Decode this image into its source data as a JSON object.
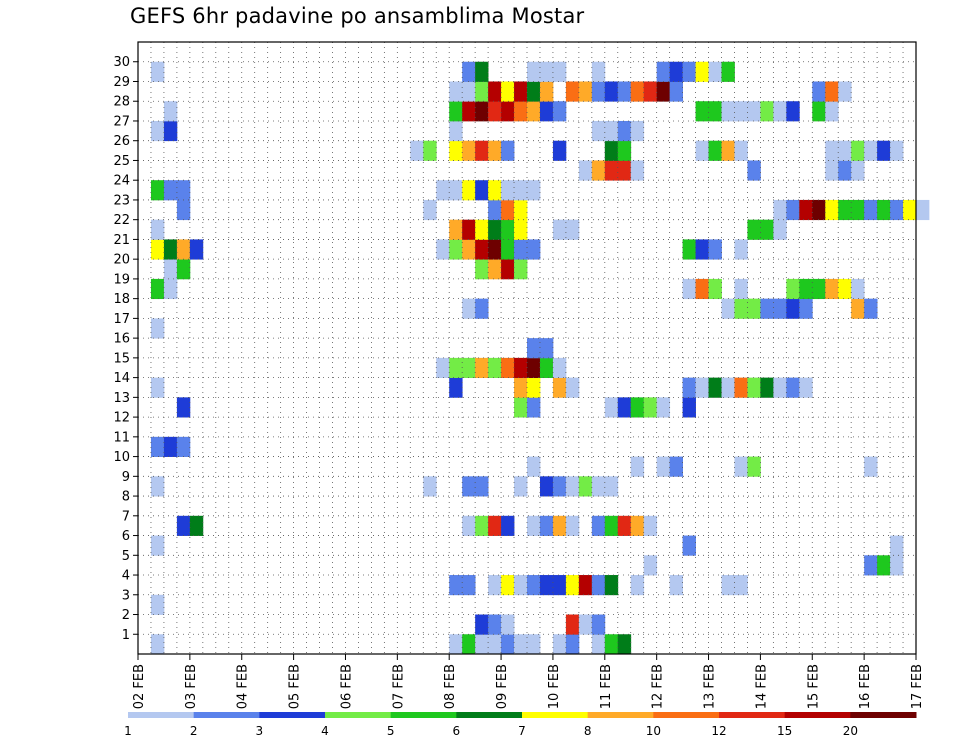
{
  "chart_data": {
    "type": "heatmap",
    "title": "GEFS 6hr padavine po ansamblima Mostar",
    "xlabel": "",
    "ylabel": "",
    "x_ticks": [
      "02 FEB",
      "03 FEB",
      "04 FEB",
      "05 FEB",
      "06 FEB",
      "07 FEB",
      "08 FEB",
      "09 FEB",
      "10 FEB",
      "11 FEB",
      "12 FEB",
      "13 FEB",
      "14 FEB",
      "15 FEB",
      "16 FEB",
      "17 FEB"
    ],
    "y_ticks": [
      "1",
      "2",
      "3",
      "4",
      "5",
      "6",
      "7",
      "8",
      "9",
      "10",
      "11",
      "12",
      "13",
      "14",
      "15",
      "16",
      "17",
      "18",
      "19",
      "20",
      "21",
      "22",
      "23",
      "24",
      "25",
      "26",
      "27",
      "28",
      "29",
      "30"
    ],
    "xlim_days": [
      0,
      15
    ],
    "steps_per_day": 4,
    "ylim": [
      0,
      30
    ],
    "grid": true,
    "legend_placement": "bottom",
    "legend": {
      "labels": [
        "1",
        "2",
        "3",
        "4",
        "5",
        "6",
        "7",
        "8",
        "10",
        "12",
        "15",
        "20"
      ],
      "colors": [
        "#b4c8f0",
        "#5a82eb",
        "#1e3cd7",
        "#73ec46",
        "#1ec81e",
        "#007d19",
        "#ffff00",
        "#ffaa28",
        "#fa6e14",
        "#e12814",
        "#b40000",
        "#6e0000"
      ]
    },
    "colors_by_level": [
      "#b4c8f0",
      "#5a82eb",
      "#1e3cd7",
      "#73ec46",
      "#1ec81e",
      "#007d19",
      "#ffff00",
      "#ffaa28",
      "#fa6e14",
      "#e12814",
      "#b40000",
      "#6e0000"
    ],
    "rows": [
      {
        "member": 0,
        "cells": [
          [
            1,
            1
          ],
          [
            24,
            1
          ],
          [
            25,
            5
          ],
          [
            26,
            1
          ],
          [
            27,
            1
          ],
          [
            28,
            2
          ],
          [
            29,
            1
          ],
          [
            30,
            1
          ],
          [
            32,
            1
          ],
          [
            33,
            2
          ],
          [
            35,
            1
          ],
          [
            36,
            5
          ],
          [
            37,
            6
          ]
        ]
      },
      {
        "member": 1,
        "cells": [
          [
            26,
            3
          ],
          [
            27,
            2
          ],
          [
            28,
            1
          ],
          [
            33,
            10
          ],
          [
            34,
            1
          ],
          [
            35,
            2
          ]
        ]
      },
      {
        "member": 2,
        "cells": [
          [
            1,
            1
          ]
        ]
      },
      {
        "member": 3,
        "cells": [
          [
            24,
            2
          ],
          [
            25,
            2
          ],
          [
            27,
            1
          ],
          [
            28,
            7
          ],
          [
            29,
            1
          ],
          [
            30,
            2
          ],
          [
            31,
            3
          ],
          [
            32,
            3
          ],
          [
            33,
            7
          ],
          [
            34,
            11
          ],
          [
            35,
            2
          ],
          [
            36,
            6
          ],
          [
            38,
            1
          ],
          [
            41,
            1
          ],
          [
            45,
            1
          ],
          [
            46,
            1
          ]
        ]
      },
      {
        "member": 4,
        "cells": [
          [
            39,
            1
          ],
          [
            56,
            2
          ],
          [
            57,
            5
          ],
          [
            58,
            1
          ]
        ]
      },
      {
        "member": 5,
        "cells": [
          [
            1,
            1
          ],
          [
            42,
            2
          ],
          [
            58,
            1
          ]
        ]
      },
      {
        "member": 6,
        "cells": [
          [
            3,
            3
          ],
          [
            4,
            6
          ],
          [
            25,
            1
          ],
          [
            26,
            4
          ],
          [
            27,
            10
          ],
          [
            28,
            3
          ],
          [
            30,
            1
          ],
          [
            31,
            2
          ],
          [
            32,
            8
          ],
          [
            33,
            1
          ],
          [
            35,
            2
          ],
          [
            36,
            5
          ],
          [
            37,
            10
          ],
          [
            38,
            8
          ],
          [
            39,
            1
          ]
        ]
      },
      {
        "member": 7,
        "cells": []
      },
      {
        "member": 8,
        "cells": [
          [
            1,
            1
          ],
          [
            22,
            1
          ],
          [
            25,
            2
          ],
          [
            26,
            2
          ],
          [
            29,
            1
          ],
          [
            31,
            3
          ],
          [
            32,
            2
          ],
          [
            33,
            1
          ],
          [
            34,
            4
          ],
          [
            35,
            1
          ],
          [
            36,
            1
          ]
        ]
      },
      {
        "member": 9,
        "cells": [
          [
            30,
            1
          ],
          [
            38,
            1
          ],
          [
            40,
            1
          ],
          [
            41,
            2
          ],
          [
            46,
            1
          ],
          [
            47,
            4
          ],
          [
            56,
            1
          ]
        ]
      },
      {
        "member": 10,
        "cells": [
          [
            1,
            2
          ],
          [
            2,
            3
          ],
          [
            3,
            2
          ]
        ]
      },
      {
        "member": 11,
        "cells": []
      },
      {
        "member": 12,
        "cells": [
          [
            3,
            3
          ],
          [
            29,
            4
          ],
          [
            30,
            2
          ],
          [
            36,
            1
          ],
          [
            37,
            3
          ],
          [
            38,
            5
          ],
          [
            39,
            4
          ],
          [
            40,
            1
          ],
          [
            42,
            3
          ]
        ]
      },
      {
        "member": 13,
        "cells": [
          [
            1,
            1
          ],
          [
            24,
            3
          ],
          [
            29,
            8
          ],
          [
            30,
            7
          ],
          [
            32,
            8
          ],
          [
            33,
            1
          ],
          [
            42,
            2
          ],
          [
            43,
            1
          ],
          [
            44,
            6
          ],
          [
            45,
            1
          ],
          [
            46,
            9
          ],
          [
            47,
            4
          ],
          [
            48,
            6
          ],
          [
            49,
            1
          ],
          [
            50,
            2
          ],
          [
            51,
            1
          ]
        ]
      },
      {
        "member": 14,
        "cells": [
          [
            23,
            1
          ],
          [
            24,
            4
          ],
          [
            25,
            4
          ],
          [
            26,
            8
          ],
          [
            27,
            4
          ],
          [
            28,
            9
          ],
          [
            29,
            11
          ],
          [
            30,
            12
          ],
          [
            31,
            5
          ],
          [
            32,
            1
          ]
        ]
      },
      {
        "member": 15,
        "cells": [
          [
            30,
            2
          ],
          [
            31,
            2
          ]
        ]
      },
      {
        "member": 16,
        "cells": [
          [
            1,
            1
          ]
        ]
      },
      {
        "member": 17,
        "cells": [
          [
            25,
            1
          ],
          [
            26,
            2
          ],
          [
            45,
            1
          ],
          [
            46,
            4
          ],
          [
            47,
            4
          ],
          [
            48,
            2
          ],
          [
            49,
            2
          ],
          [
            50,
            3
          ],
          [
            51,
            2
          ],
          [
            55,
            8
          ],
          [
            56,
            2
          ]
        ]
      },
      {
        "member": 18,
        "cells": [
          [
            1,
            5
          ],
          [
            2,
            1
          ],
          [
            42,
            1
          ],
          [
            43,
            9
          ],
          [
            44,
            4
          ],
          [
            46,
            1
          ],
          [
            50,
            4
          ],
          [
            51,
            5
          ],
          [
            52,
            5
          ],
          [
            53,
            8
          ],
          [
            54,
            7
          ],
          [
            55,
            1
          ]
        ]
      },
      {
        "member": 19,
        "cells": [
          [
            2,
            1
          ],
          [
            3,
            5
          ],
          [
            26,
            4
          ],
          [
            27,
            8
          ],
          [
            28,
            11
          ],
          [
            29,
            4
          ]
        ]
      },
      {
        "member": 20,
        "cells": [
          [
            1,
            7
          ],
          [
            2,
            6
          ],
          [
            3,
            8
          ],
          [
            4,
            3
          ],
          [
            23,
            1
          ],
          [
            24,
            4
          ],
          [
            25,
            8
          ],
          [
            26,
            11
          ],
          [
            27,
            12
          ],
          [
            28,
            5
          ],
          [
            29,
            2
          ],
          [
            30,
            2
          ],
          [
            42,
            5
          ],
          [
            43,
            3
          ],
          [
            44,
            2
          ],
          [
            46,
            1
          ]
        ]
      },
      {
        "member": 21,
        "cells": [
          [
            1,
            1
          ],
          [
            24,
            8
          ],
          [
            25,
            11
          ],
          [
            26,
            7
          ],
          [
            27,
            6
          ],
          [
            28,
            5
          ],
          [
            29,
            7
          ],
          [
            32,
            1
          ],
          [
            33,
            1
          ],
          [
            47,
            5
          ],
          [
            48,
            5
          ],
          [
            49,
            1
          ]
        ]
      },
      {
        "member": 22,
        "cells": [
          [
            3,
            2
          ],
          [
            22,
            1
          ],
          [
            27,
            2
          ],
          [
            28,
            9
          ],
          [
            29,
            7
          ],
          [
            49,
            1
          ],
          [
            50,
            2
          ],
          [
            51,
            11
          ],
          [
            52,
            12
          ],
          [
            53,
            7
          ],
          [
            54,
            5
          ],
          [
            55,
            5
          ],
          [
            56,
            2
          ],
          [
            57,
            5
          ],
          [
            58,
            2
          ],
          [
            59,
            7
          ],
          [
            60,
            1
          ]
        ]
      },
      {
        "member": 23,
        "cells": [
          [
            1,
            5
          ],
          [
            2,
            2
          ],
          [
            3,
            2
          ],
          [
            23,
            1
          ],
          [
            24,
            1
          ],
          [
            25,
            7
          ],
          [
            26,
            3
          ],
          [
            27,
            7
          ],
          [
            28,
            1
          ],
          [
            29,
            1
          ],
          [
            30,
            1
          ]
        ]
      },
      {
        "member": 24,
        "cells": [
          [
            34,
            1
          ],
          [
            35,
            8
          ],
          [
            36,
            10
          ],
          [
            37,
            10
          ],
          [
            38,
            1
          ],
          [
            47,
            2
          ],
          [
            53,
            1
          ],
          [
            54,
            2
          ],
          [
            55,
            1
          ]
        ]
      },
      {
        "member": 25,
        "cells": [
          [
            21,
            1
          ],
          [
            22,
            4
          ],
          [
            24,
            7
          ],
          [
            25,
            8
          ],
          [
            26,
            10
          ],
          [
            27,
            8
          ],
          [
            28,
            2
          ],
          [
            32,
            3
          ],
          [
            36,
            6
          ],
          [
            37,
            5
          ],
          [
            43,
            1
          ],
          [
            44,
            5
          ],
          [
            45,
            8
          ],
          [
            46,
            1
          ],
          [
            53,
            1
          ],
          [
            54,
            1
          ],
          [
            55,
            4
          ],
          [
            56,
            1
          ],
          [
            57,
            3
          ],
          [
            58,
            1
          ]
        ]
      },
      {
        "member": 26,
        "cells": [
          [
            1,
            1
          ],
          [
            2,
            3
          ],
          [
            24,
            1
          ],
          [
            35,
            1
          ],
          [
            36,
            1
          ],
          [
            37,
            2
          ],
          [
            38,
            1
          ]
        ]
      },
      {
        "member": 27,
        "cells": [
          [
            2,
            1
          ],
          [
            24,
            5
          ],
          [
            25,
            11
          ],
          [
            26,
            12
          ],
          [
            27,
            10
          ],
          [
            28,
            11
          ],
          [
            29,
            9
          ],
          [
            30,
            8
          ],
          [
            31,
            3
          ],
          [
            32,
            2
          ],
          [
            43,
            5
          ],
          [
            44,
            5
          ],
          [
            45,
            1
          ],
          [
            46,
            1
          ],
          [
            47,
            1
          ],
          [
            48,
            4
          ],
          [
            49,
            1
          ],
          [
            50,
            3
          ],
          [
            52,
            5
          ],
          [
            53,
            1
          ]
        ]
      },
      {
        "member": 28,
        "cells": [
          [
            24,
            1
          ],
          [
            25,
            1
          ],
          [
            26,
            4
          ],
          [
            27,
            11
          ],
          [
            28,
            7
          ],
          [
            29,
            11
          ],
          [
            30,
            6
          ],
          [
            31,
            8
          ],
          [
            33,
            9
          ],
          [
            34,
            8
          ],
          [
            35,
            2
          ],
          [
            36,
            3
          ],
          [
            37,
            2
          ],
          [
            38,
            9
          ],
          [
            39,
            10
          ],
          [
            40,
            12
          ],
          [
            41,
            2
          ],
          [
            52,
            2
          ],
          [
            53,
            9
          ],
          [
            54,
            1
          ]
        ]
      },
      {
        "member": 29,
        "cells": [
          [
            1,
            1
          ],
          [
            25,
            2
          ],
          [
            26,
            6
          ],
          [
            30,
            1
          ],
          [
            31,
            1
          ],
          [
            32,
            1
          ],
          [
            35,
            1
          ],
          [
            40,
            2
          ],
          [
            41,
            3
          ],
          [
            42,
            2
          ],
          [
            43,
            7
          ],
          [
            44,
            1
          ],
          [
            45,
            5
          ]
        ]
      }
    ]
  }
}
